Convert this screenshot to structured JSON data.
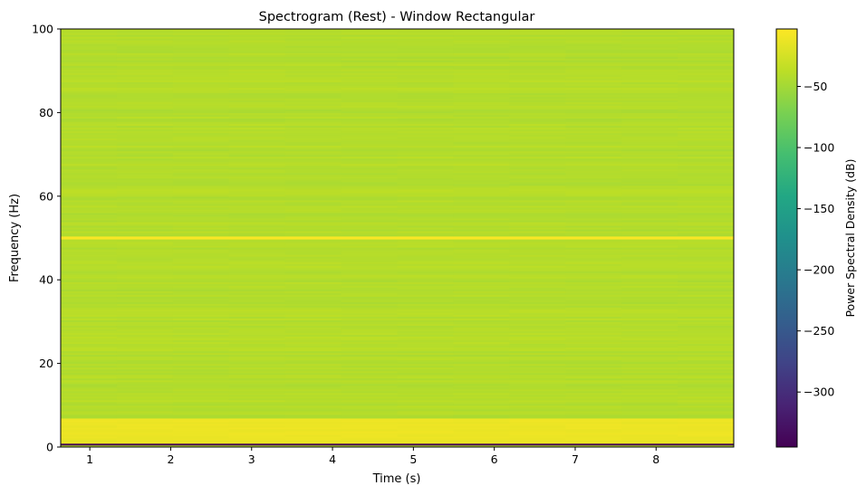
{
  "chart_data": {
    "type": "heatmap",
    "title": "Spectrogram (Rest) - Window Rectangular",
    "xlabel": "Time (s)",
    "ylabel": "Frequency (Hz)",
    "xlim": [
      0.64,
      8.96
    ],
    "ylim": [
      0,
      100
    ],
    "xticks": [
      1,
      2,
      3,
      4,
      5,
      6,
      7,
      8
    ],
    "xtick_labels": [
      "1",
      "2",
      "3",
      "4",
      "5",
      "6",
      "7",
      "8"
    ],
    "yticks": [
      0,
      20,
      40,
      60,
      80,
      100
    ],
    "ytick_labels": [
      "0",
      "20",
      "40",
      "60",
      "80",
      "100"
    ],
    "colormap": "viridis",
    "colorbar": {
      "label": "Power Spectral Density (dB)",
      "range": [
        -345,
        -3
      ],
      "ticks": [
        -50,
        -100,
        -150,
        -200,
        -250,
        -300
      ],
      "tick_labels": [
        "−50",
        "−100",
        "−150",
        "−200",
        "−250",
        "−300"
      ]
    },
    "features": {
      "background_level_db": -42,
      "line_noise": {
        "frequency_hz": 50,
        "level_db": -5
      },
      "low_frequency_band": {
        "range_hz": [
          1,
          7
        ],
        "level_db": -12
      },
      "dc_row": {
        "frequency_hz": 0.5,
        "level_db": -345
      }
    },
    "grid": false
  }
}
